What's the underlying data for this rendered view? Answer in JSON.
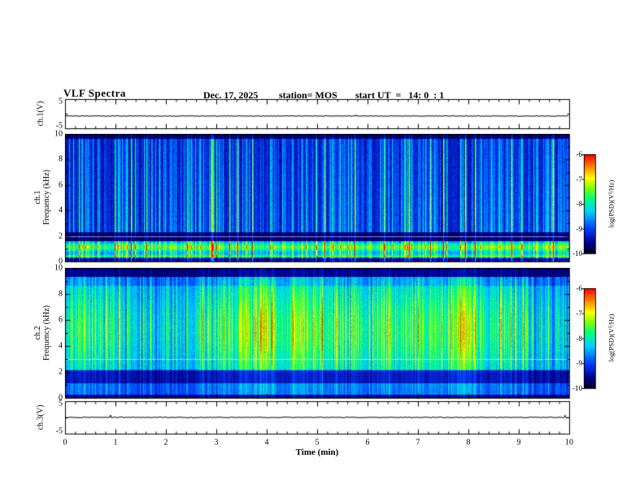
{
  "header": {
    "title": "VLF Spectra",
    "date": "Dec. 17, 2025",
    "station": "station= MOS",
    "start_ut": "start UT  =   14: 0  : 1"
  },
  "panels": {
    "ch1v": {
      "label": "ch.1(V)",
      "ymax": "5",
      "ymin": "-5"
    },
    "ch1spec": {
      "label_line1": "ch.1",
      "label_line2": "Frequency (kHz)",
      "yticks": [
        "10",
        "8",
        "6",
        "4",
        "2",
        "0"
      ]
    },
    "ch2spec": {
      "label_line1": "ch.2",
      "label_line2": "Frequency (kHz)",
      "yticks": [
        "10",
        "8",
        "6",
        "4",
        "2",
        "0"
      ]
    },
    "ch3v": {
      "label": "ch.3(V)",
      "ymax": "5",
      "ymin": "-5"
    }
  },
  "xaxis": {
    "label": "Time (min)",
    "ticks": [
      "0",
      "1",
      "2",
      "3",
      "4",
      "5",
      "6",
      "7",
      "8",
      "9",
      "10"
    ]
  },
  "colorbar": {
    "ticks": [
      "-6",
      "-7",
      "-8",
      "-9",
      "-10"
    ],
    "label": "log(PSD)(V²/Hz)"
  },
  "colors": {
    "frame": "#000000",
    "background": "#ffffff",
    "grid_line": "#ffffff",
    "colormap": [
      [
        "0.00",
        "#000026"
      ],
      [
        "0.10",
        "#00008c"
      ],
      [
        "0.25",
        "#0040ff"
      ],
      [
        "0.42",
        "#00d0ff"
      ],
      [
        "0.55",
        "#00ff80"
      ],
      [
        "0.66",
        "#80ff00"
      ],
      [
        "0.76",
        "#ffff00"
      ],
      [
        "0.88",
        "#ff8000"
      ],
      [
        "1.00",
        "#ff0000"
      ]
    ]
  },
  "chart_data": [
    {
      "type": "line",
      "name": "ch.1 voltage monitor",
      "ylabel": "ch.1(V)",
      "ylim": [
        -5,
        5
      ],
      "xlim": [
        0,
        10
      ],
      "xlabel": "Time (min)",
      "description": "near-flat trace at about -0.8 V with very small noise"
    },
    {
      "type": "heatmap",
      "name": "ch.1 VLF spectrogram",
      "ylabel": "Frequency (kHz)",
      "ylim": [
        0,
        10
      ],
      "xlim": [
        0,
        10
      ],
      "xlabel": "Time (min)",
      "value_label": "log(PSD)(V²/Hz)",
      "value_range": [
        -10,
        -6
      ],
      "colormap": "jet",
      "features": [
        "dense vertical sferic streaks over 2-9.5 kHz, mostly -9.5..-8.5 (blue/cyan), occasional green-yellow columns",
        "bright quasi-horizontal band 0.3-1.6 kHz near -8 (cyan/green)",
        "dark gap band 1.6-2.3 kHz near -10",
        "dark strip above 9.6 kHz",
        "thin light horizontal line near 2 kHz"
      ]
    },
    {
      "type": "heatmap",
      "name": "ch.2 VLF spectrogram",
      "ylabel": "Frequency (kHz)",
      "ylim": [
        0,
        10
      ],
      "xlim": [
        0,
        10
      ],
      "xlabel": "Time (min)",
      "value_label": "log(PSD)(V²/Hz)",
      "value_range": [
        -10,
        -6
      ],
      "colormap": "jet",
      "features": [
        "strong broadband activity 2-8.5 kHz near -7.5..-6.5 (green/yellow) with red patches",
        "darker band 1.1-2.1 kHz",
        "moderate cyan band 0.3-1.1 kHz",
        "dark strip above 9.3 kHz",
        "thin light horizontal line near 3 kHz"
      ]
    },
    {
      "type": "line",
      "name": "ch.3 voltage monitor",
      "ylabel": "ch.3(V)",
      "ylim": [
        -5,
        5
      ],
      "xlim": [
        0,
        10
      ],
      "xlabel": "Time (min)",
      "description": "near-flat trace at about 0 V with very small noise"
    }
  ],
  "render": {
    "seed": 20251217,
    "trace1_v": -0.8,
    "trace3_v": 0.0,
    "trace_jitter": 0.12,
    "grid_freq_ch1": 2.0,
    "grid_freq_ch2": 3.0
  }
}
